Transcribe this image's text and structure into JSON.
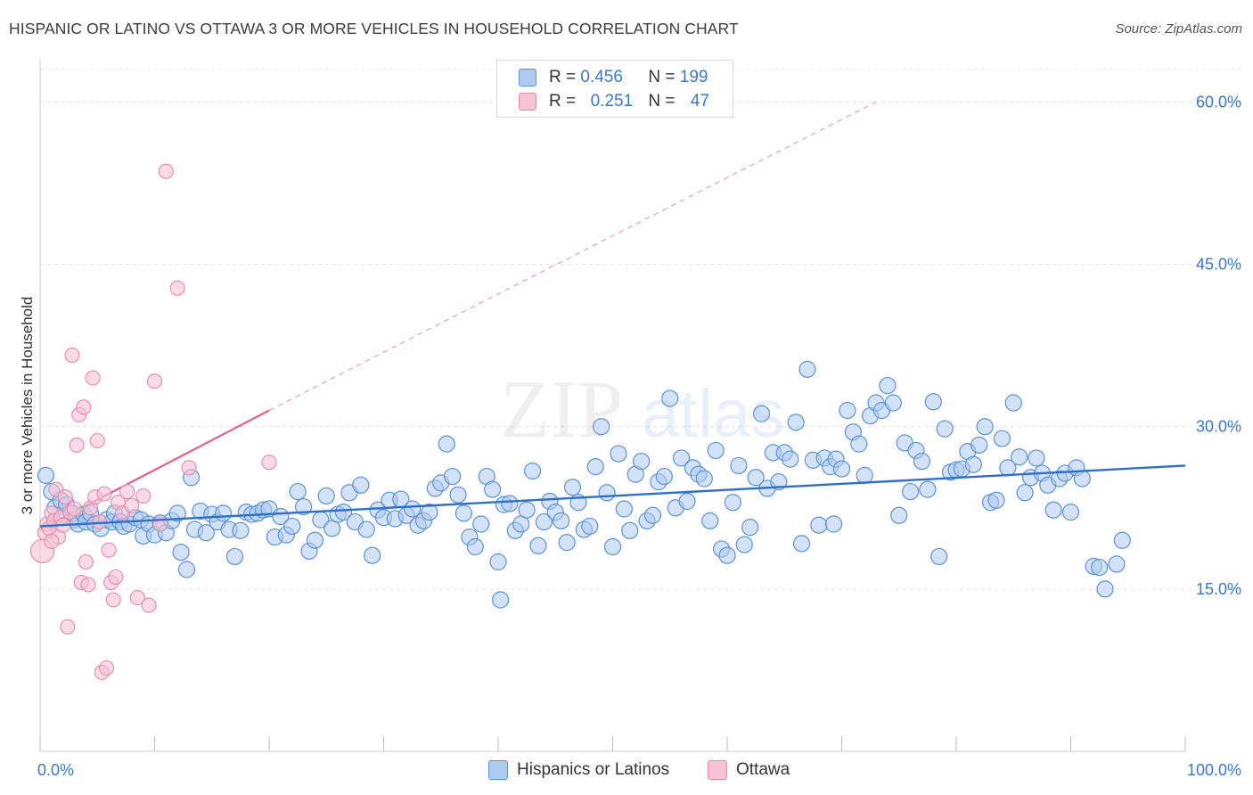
{
  "title": "HISPANIC OR LATINO VS OTTAWA 3 OR MORE VEHICLES IN HOUSEHOLD CORRELATION CHART",
  "source": "Source: ZipAtlas.com",
  "watermark": {
    "zip": "ZIP",
    "atlas": "atlas"
  },
  "legend": {
    "rows": [
      {
        "r_label": "R =",
        "r_value": "0.456",
        "n_label": "N =",
        "n_value": "199"
      },
      {
        "r_label": "R =",
        "r_value": "0.251",
        "n_label": "N =",
        "n_value": "47"
      }
    ]
  },
  "bottom_legend": {
    "series1": "Hispanics or Latinos",
    "series2": "Ottawa"
  },
  "colors": {
    "blue_fill": "#aecbf0",
    "blue_stroke": "#5b93d6",
    "blue_line": "#2e6fcc",
    "pink_fill": "#f7c2d3",
    "pink_stroke": "#e78aa8",
    "pink_line": "#e0608c",
    "axis_text": "#3b78c9",
    "grid": "#e2e2e2"
  },
  "chart_data": {
    "type": "scatter",
    "title": "HISPANIC OR LATINO VS OTTAWA 3 OR MORE VEHICLES IN HOUSEHOLD CORRELATION CHART",
    "xlabel": "",
    "ylabel": "3 or more Vehicles in Household",
    "xlim": [
      0,
      100
    ],
    "ylim": [
      0,
      63
    ],
    "x_tick_labels": [
      "0.0%",
      "100.0%"
    ],
    "y_ticks": [
      15,
      30,
      45,
      60
    ],
    "y_tick_labels": [
      "15.0%",
      "30.0%",
      "45.0%",
      "60.0%"
    ],
    "grid": true,
    "series": [
      {
        "name": "Hispanics or Latinos",
        "color": "blue",
        "trend": {
          "x": [
            0,
            100
          ],
          "y": [
            20.8,
            26.4
          ],
          "style": "solid"
        },
        "points": [
          [
            0.5,
            25.5
          ],
          [
            1.0,
            24.0
          ],
          [
            1.3,
            22.5
          ],
          [
            1.8,
            23.2
          ],
          [
            2.0,
            21.6
          ],
          [
            2.3,
            22.8
          ],
          [
            2.8,
            22.0
          ],
          [
            3.0,
            21.4
          ],
          [
            3.3,
            21.0
          ],
          [
            3.8,
            21.9
          ],
          [
            4.0,
            21.2
          ],
          [
            4.4,
            22.0
          ],
          [
            4.8,
            21.0
          ],
          [
            5.3,
            20.6
          ],
          [
            5.8,
            21.4
          ],
          [
            6.3,
            21.2
          ],
          [
            6.5,
            22.0
          ],
          [
            7.0,
            21.2
          ],
          [
            7.3,
            20.8
          ],
          [
            7.8,
            21.0
          ],
          [
            8.3,
            21.6
          ],
          [
            8.8,
            21.4
          ],
          [
            9.0,
            19.9
          ],
          [
            9.5,
            21.0
          ],
          [
            10.0,
            20.0
          ],
          [
            10.5,
            21.1
          ],
          [
            11.0,
            20.2
          ],
          [
            11.5,
            21.3
          ],
          [
            12.0,
            22.0
          ],
          [
            12.3,
            18.4
          ],
          [
            12.8,
            16.8
          ],
          [
            13.5,
            20.5
          ],
          [
            14.0,
            22.2
          ],
          [
            14.5,
            20.2
          ],
          [
            15.0,
            21.9
          ],
          [
            15.5,
            21.2
          ],
          [
            16.0,
            22.0
          ],
          [
            16.5,
            20.5
          ],
          [
            17.0,
            18.0
          ],
          [
            17.5,
            20.4
          ],
          [
            18.0,
            22.1
          ],
          [
            18.5,
            21.9
          ],
          [
            19.0,
            22.0
          ],
          [
            19.5,
            22.3
          ],
          [
            20.0,
            22.4
          ],
          [
            20.5,
            19.8
          ],
          [
            21.0,
            21.7
          ],
          [
            21.5,
            20.0
          ],
          [
            22.0,
            20.8
          ],
          [
            22.5,
            24.0
          ],
          [
            23.0,
            22.6
          ],
          [
            23.5,
            18.5
          ],
          [
            24.0,
            19.5
          ],
          [
            24.5,
            21.4
          ],
          [
            25.0,
            23.6
          ],
          [
            25.5,
            20.6
          ],
          [
            26.0,
            21.9
          ],
          [
            26.5,
            22.1
          ],
          [
            27.0,
            23.9
          ],
          [
            27.5,
            21.2
          ],
          [
            28.0,
            24.6
          ],
          [
            28.5,
            20.5
          ],
          [
            29.0,
            18.1
          ],
          [
            29.5,
            22.3
          ],
          [
            30.0,
            21.6
          ],
          [
            30.5,
            23.2
          ],
          [
            31.0,
            21.5
          ],
          [
            31.5,
            23.3
          ],
          [
            32.0,
            21.8
          ],
          [
            32.5,
            22.4
          ],
          [
            33.0,
            20.9
          ],
          [
            33.5,
            21.3
          ],
          [
            34.0,
            22.1
          ],
          [
            34.5,
            24.3
          ],
          [
            35.0,
            24.8
          ],
          [
            35.5,
            28.4
          ],
          [
            36.0,
            25.4
          ],
          [
            36.5,
            23.7
          ],
          [
            37.0,
            22.0
          ],
          [
            37.5,
            19.8
          ],
          [
            38.0,
            18.9
          ],
          [
            38.5,
            21.0
          ],
          [
            39.0,
            25.4
          ],
          [
            39.5,
            24.2
          ],
          [
            40.0,
            17.5
          ],
          [
            40.5,
            22.8
          ],
          [
            41.0,
            22.9
          ],
          [
            41.5,
            20.4
          ],
          [
            42.0,
            21.0
          ],
          [
            42.5,
            22.3
          ],
          [
            43.0,
            25.9
          ],
          [
            43.5,
            19.0
          ],
          [
            44.0,
            21.2
          ],
          [
            44.5,
            23.1
          ],
          [
            45.0,
            22.1
          ],
          [
            45.5,
            21.3
          ],
          [
            46.0,
            19.3
          ],
          [
            46.5,
            24.4
          ],
          [
            47.0,
            23.0
          ],
          [
            47.5,
            20.5
          ],
          [
            48.0,
            20.8
          ],
          [
            48.5,
            26.3
          ],
          [
            49.0,
            30.0
          ],
          [
            49.5,
            23.9
          ],
          [
            50.0,
            18.9
          ],
          [
            50.5,
            27.5
          ],
          [
            51.0,
            22.4
          ],
          [
            51.5,
            20.4
          ],
          [
            52.0,
            25.6
          ],
          [
            52.5,
            26.8
          ],
          [
            53.0,
            21.3
          ],
          [
            53.5,
            21.8
          ],
          [
            54.0,
            24.9
          ],
          [
            54.5,
            25.4
          ],
          [
            55.0,
            32.6
          ],
          [
            55.5,
            22.5
          ],
          [
            56.0,
            27.1
          ],
          [
            56.5,
            23.1
          ],
          [
            57.0,
            26.2
          ],
          [
            57.5,
            25.6
          ],
          [
            58.0,
            25.2
          ],
          [
            58.5,
            21.3
          ],
          [
            59.0,
            27.8
          ],
          [
            59.5,
            18.7
          ],
          [
            60.0,
            18.1
          ],
          [
            60.5,
            23.0
          ],
          [
            61.0,
            26.4
          ],
          [
            61.5,
            19.1
          ],
          [
            62.0,
            20.7
          ],
          [
            62.5,
            25.3
          ],
          [
            63.0,
            31.2
          ],
          [
            63.5,
            24.3
          ],
          [
            64.0,
            27.6
          ],
          [
            64.5,
            24.9
          ],
          [
            65.0,
            27.6
          ],
          [
            65.5,
            27.0
          ],
          [
            66.0,
            30.4
          ],
          [
            66.5,
            19.2
          ],
          [
            67.0,
            35.3
          ],
          [
            67.5,
            26.9
          ],
          [
            68.0,
            20.9
          ],
          [
            68.5,
            27.1
          ],
          [
            69.0,
            26.3
          ],
          [
            69.5,
            27.0
          ],
          [
            70.0,
            26.1
          ],
          [
            70.5,
            31.5
          ],
          [
            71.0,
            29.5
          ],
          [
            71.5,
            28.4
          ],
          [
            72.0,
            25.5
          ],
          [
            72.5,
            31.0
          ],
          [
            73.0,
            32.2
          ],
          [
            73.5,
            31.5
          ],
          [
            74.0,
            33.8
          ],
          [
            74.5,
            32.2
          ],
          [
            75.0,
            21.8
          ],
          [
            75.5,
            28.5
          ],
          [
            76.0,
            24.0
          ],
          [
            76.5,
            27.8
          ],
          [
            77.0,
            26.8
          ],
          [
            77.5,
            24.2
          ],
          [
            78.0,
            32.3
          ],
          [
            78.5,
            18.0
          ],
          [
            79.0,
            29.8
          ],
          [
            79.5,
            25.8
          ],
          [
            80.0,
            26.0
          ],
          [
            80.5,
            26.1
          ],
          [
            81.0,
            27.7
          ],
          [
            81.5,
            26.5
          ],
          [
            82.0,
            28.3
          ],
          [
            82.5,
            30.0
          ],
          [
            83.0,
            23.0
          ],
          [
            83.5,
            23.2
          ],
          [
            84.0,
            28.9
          ],
          [
            84.5,
            26.2
          ],
          [
            85.0,
            32.2
          ],
          [
            85.5,
            27.2
          ],
          [
            86.0,
            23.9
          ],
          [
            86.5,
            25.3
          ],
          [
            87.0,
            27.1
          ],
          [
            87.5,
            25.7
          ],
          [
            88.0,
            24.6
          ],
          [
            88.5,
            22.3
          ],
          [
            89.0,
            25.2
          ],
          [
            89.5,
            25.7
          ],
          [
            90.0,
            22.1
          ],
          [
            90.5,
            26.2
          ],
          [
            91.0,
            25.2
          ],
          [
            92.0,
            17.1
          ],
          [
            92.5,
            17.0
          ],
          [
            93.0,
            15.0
          ],
          [
            94.0,
            17.3
          ],
          [
            94.5,
            19.5
          ],
          [
            40.2,
            14.0
          ],
          [
            69.3,
            21.0
          ],
          [
            13.2,
            25.3
          ]
        ]
      },
      {
        "name": "Ottawa",
        "color": "pink",
        "trend": {
          "x": [
            0,
            20
          ],
          "y": [
            20.5,
            31.5
          ],
          "style": "solid",
          "extension": {
            "x": [
              20,
              73
            ],
            "y": [
              31.5,
              60
            ],
            "style": "dashed"
          }
        },
        "points": [
          [
            0.2,
            18.5
          ],
          [
            0.4,
            20.2
          ],
          [
            0.6,
            21.0
          ],
          [
            0.8,
            20.6
          ],
          [
            1.0,
            22.0
          ],
          [
            1.2,
            21.3
          ],
          [
            1.4,
            24.2
          ],
          [
            1.6,
            19.8
          ],
          [
            1.8,
            21.6
          ],
          [
            2.0,
            20.9
          ],
          [
            2.2,
            23.5
          ],
          [
            2.4,
            11.5
          ],
          [
            2.6,
            22.1
          ],
          [
            2.8,
            36.6
          ],
          [
            3.0,
            22.4
          ],
          [
            3.2,
            28.3
          ],
          [
            3.4,
            31.1
          ],
          [
            3.6,
            15.6
          ],
          [
            3.8,
            31.8
          ],
          [
            4.0,
            17.5
          ],
          [
            4.2,
            15.4
          ],
          [
            4.4,
            22.5
          ],
          [
            4.6,
            34.5
          ],
          [
            4.8,
            23.5
          ],
          [
            5.0,
            28.7
          ],
          [
            5.2,
            21.2
          ],
          [
            5.4,
            7.3
          ],
          [
            5.6,
            23.8
          ],
          [
            5.8,
            7.7
          ],
          [
            6.0,
            18.6
          ],
          [
            6.2,
            15.6
          ],
          [
            6.4,
            14.0
          ],
          [
            6.6,
            16.1
          ],
          [
            6.8,
            23.0
          ],
          [
            7.2,
            22.0
          ],
          [
            7.6,
            24.0
          ],
          [
            8.0,
            22.7
          ],
          [
            8.5,
            14.2
          ],
          [
            9.0,
            23.6
          ],
          [
            9.5,
            13.5
          ],
          [
            10.0,
            34.2
          ],
          [
            10.5,
            21.0
          ],
          [
            11.0,
            53.6
          ],
          [
            12.0,
            42.8
          ],
          [
            13.0,
            26.2
          ],
          [
            20.0,
            26.7
          ],
          [
            1.0,
            19.4
          ]
        ]
      }
    ]
  }
}
